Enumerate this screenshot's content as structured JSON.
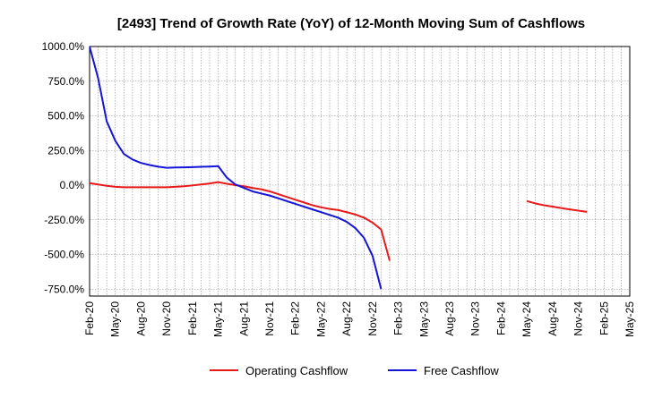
{
  "chart_data": {
    "type": "line",
    "title": "[2493]  Trend of Growth Rate (YoY) of 12-Month Moving Sum of Cashflows",
    "xlabel": "",
    "ylabel": "",
    "x_range": [
      "2020-02",
      "2025-05"
    ],
    "ylim": [
      -800,
      1000
    ],
    "y_ticks": [
      -750,
      -500,
      -250,
      0,
      250,
      500,
      750,
      1000
    ],
    "y_tick_labels": [
      "-750.0%",
      "-500.0%",
      "-250.0%",
      "0.0%",
      "250.0%",
      "500.0%",
      "750.0%",
      "1000.0%"
    ],
    "x_ticks": [
      "2020-02",
      "2020-05",
      "2020-08",
      "2020-11",
      "2021-02",
      "2021-05",
      "2021-08",
      "2021-11",
      "2022-02",
      "2022-05",
      "2022-08",
      "2022-11",
      "2023-02",
      "2023-05",
      "2023-08",
      "2023-11",
      "2024-02",
      "2024-05",
      "2024-08",
      "2024-11",
      "2025-02",
      "2025-05"
    ],
    "x_tick_labels": [
      "Feb-20",
      "May-20",
      "Aug-20",
      "Nov-20",
      "Feb-21",
      "May-21",
      "Aug-21",
      "Nov-21",
      "Feb-22",
      "May-22",
      "Aug-22",
      "Nov-22",
      "Feb-23",
      "May-23",
      "Aug-23",
      "Nov-23",
      "Feb-24",
      "May-24",
      "Aug-24",
      "Nov-24",
      "Feb-25",
      "May-25"
    ],
    "grid": true,
    "legend_position": "bottom",
    "series": [
      {
        "name": "Operating Cashflow",
        "color": "#e8191a",
        "segments": [
          [
            [
              "2020-02",
              15
            ],
            [
              "2020-03",
              5
            ],
            [
              "2020-04",
              -5
            ],
            [
              "2020-05",
              -12
            ],
            [
              "2020-06",
              -15
            ],
            [
              "2020-07",
              -15
            ],
            [
              "2020-08",
              -15
            ],
            [
              "2020-09",
              -15
            ],
            [
              "2020-10",
              -15
            ],
            [
              "2020-11",
              -15
            ],
            [
              "2020-12",
              -12
            ],
            [
              "2021-01",
              -8
            ],
            [
              "2021-02",
              -2
            ],
            [
              "2021-03",
              5
            ],
            [
              "2021-04",
              12
            ],
            [
              "2021-05",
              22
            ],
            [
              "2021-06",
              10
            ],
            [
              "2021-07",
              0
            ],
            [
              "2021-08",
              -8
            ],
            [
              "2021-09",
              -20
            ],
            [
              "2021-10",
              -30
            ],
            [
              "2021-11",
              -45
            ],
            [
              "2021-12",
              -65
            ],
            [
              "2022-01",
              -85
            ],
            [
              "2022-02",
              -105
            ],
            [
              "2022-03",
              -125
            ],
            [
              "2022-04",
              -145
            ],
            [
              "2022-05",
              -160
            ],
            [
              "2022-06",
              -172
            ],
            [
              "2022-07",
              -180
            ],
            [
              "2022-08",
              -195
            ],
            [
              "2022-09",
              -212
            ],
            [
              "2022-10",
              -235
            ],
            [
              "2022-11",
              -270
            ],
            [
              "2022-12",
              -320
            ],
            [
              "2023-01",
              -545
            ]
          ],
          [
            [
              "2024-05",
              -115
            ],
            [
              "2024-06",
              -132
            ],
            [
              "2024-07",
              -145
            ],
            [
              "2024-08",
              -155
            ],
            [
              "2024-09",
              -165
            ],
            [
              "2024-10",
              -175
            ],
            [
              "2024-11",
              -184
            ],
            [
              "2024-12",
              -193
            ]
          ]
        ]
      },
      {
        "name": "Free Cashflow",
        "color": "#1515d8",
        "segments": [
          [
            [
              "2020-02",
              1000
            ],
            [
              "2020-03",
              770
            ],
            [
              "2020-04",
              460
            ],
            [
              "2020-05",
              320
            ],
            [
              "2020-06",
              225
            ],
            [
              "2020-07",
              185
            ],
            [
              "2020-08",
              160
            ],
            [
              "2020-09",
              145
            ],
            [
              "2020-10",
              133
            ],
            [
              "2020-11",
              125
            ],
            [
              "2020-12",
              127
            ],
            [
              "2021-01",
              128
            ],
            [
              "2021-02",
              130
            ],
            [
              "2021-03",
              132
            ],
            [
              "2021-04",
              134
            ],
            [
              "2021-05",
              137
            ],
            [
              "2021-06",
              55
            ],
            [
              "2021-07",
              5
            ],
            [
              "2021-08",
              -20
            ],
            [
              "2021-09",
              -45
            ],
            [
              "2021-10",
              -60
            ],
            [
              "2021-11",
              -75
            ],
            [
              "2021-12",
              -95
            ],
            [
              "2022-01",
              -115
            ],
            [
              "2022-02",
              -135
            ],
            [
              "2022-03",
              -155
            ],
            [
              "2022-04",
              -175
            ],
            [
              "2022-05",
              -195
            ],
            [
              "2022-06",
              -215
            ],
            [
              "2022-07",
              -235
            ],
            [
              "2022-08",
              -265
            ],
            [
              "2022-09",
              -310
            ],
            [
              "2022-10",
              -380
            ],
            [
              "2022-11",
              -510
            ],
            [
              "2022-12",
              -750
            ]
          ]
        ]
      }
    ]
  }
}
